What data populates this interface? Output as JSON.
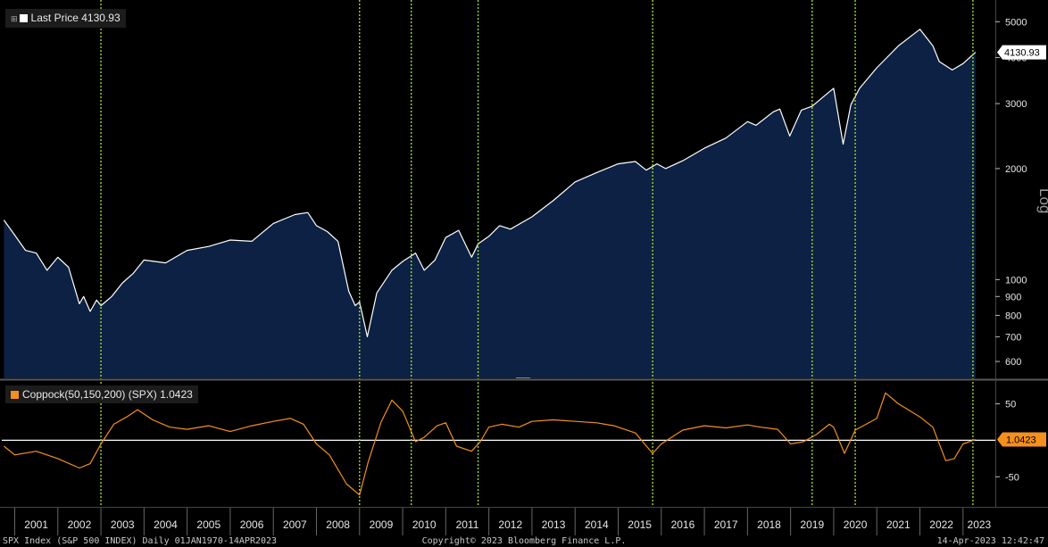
{
  "chart_data": [
    {
      "type": "area",
      "legend": {
        "label": "Last Price",
        "value": "4130.93"
      },
      "scale": "log",
      "ylim": [
        540,
        5600
      ],
      "xlim": [
        2000.7,
        2023.75
      ],
      "yticks": [
        "5000",
        "4000",
        "3000",
        "2000",
        "1000",
        "900",
        "800",
        "700",
        "600"
      ],
      "ytick_values": [
        5000,
        4000,
        3000,
        2000,
        1000,
        900,
        800,
        700,
        600
      ],
      "y_axis_note": "Log",
      "last_value_label": "4130.93",
      "x": [
        2000.75,
        2001.0,
        2001.25,
        2001.5,
        2001.75,
        2002.0,
        2002.25,
        2002.5,
        2002.6,
        2002.75,
        2002.9,
        2003.0,
        2003.25,
        2003.5,
        2003.75,
        2004.0,
        2004.5,
        2005.0,
        2005.5,
        2006.0,
        2006.5,
        2007.0,
        2007.5,
        2007.8,
        2008.0,
        2008.25,
        2008.5,
        2008.75,
        2008.9,
        2009.0,
        2009.18,
        2009.4,
        2009.75,
        2010.0,
        2010.3,
        2010.5,
        2010.75,
        2011.0,
        2011.3,
        2011.6,
        2011.75,
        2012.0,
        2012.25,
        2012.5,
        2013.0,
        2013.5,
        2014.0,
        2014.5,
        2015.0,
        2015.4,
        2015.65,
        2015.9,
        2016.1,
        2016.5,
        2017.0,
        2017.5,
        2018.0,
        2018.2,
        2018.6,
        2018.75,
        2018.98,
        2019.25,
        2019.5,
        2019.9,
        2020.0,
        2020.22,
        2020.4,
        2020.6,
        2021.0,
        2021.5,
        2022.0,
        2022.3,
        2022.45,
        2022.75,
        2023.0,
        2023.29
      ],
      "y": [
        1450,
        1320,
        1200,
        1180,
        1060,
        1150,
        1080,
        860,
        900,
        820,
        880,
        850,
        900,
        980,
        1040,
        1130,
        1110,
        1200,
        1230,
        1280,
        1270,
        1420,
        1500,
        1520,
        1400,
        1350,
        1270,
        930,
        850,
        870,
        700,
        920,
        1060,
        1120,
        1180,
        1060,
        1130,
        1300,
        1360,
        1150,
        1250,
        1310,
        1400,
        1370,
        1480,
        1640,
        1840,
        1950,
        2060,
        2090,
        1980,
        2060,
        2000,
        2100,
        2270,
        2420,
        2680,
        2620,
        2850,
        2900,
        2450,
        2880,
        2950,
        3230,
        3300,
        2330,
        2980,
        3300,
        3750,
        4300,
        4770,
        4300,
        3900,
        3700,
        3850,
        4130.93
      ],
      "event_lines_x": [
        2003.0,
        2009.0,
        2010.2,
        2011.75,
        2015.8,
        2019.5,
        2020.5,
        2023.23
      ]
    },
    {
      "type": "line",
      "legend": {
        "label": "Coppock(50,150,200) (SPX)",
        "value": "1.0423"
      },
      "ylim": [
        -90,
        80
      ],
      "yticks": [
        "50",
        "-50"
      ],
      "ytick_values": [
        50,
        -50
      ],
      "reference_line": 0,
      "last_value_label": "1.0423",
      "x": [
        2000.75,
        2001.0,
        2001.5,
        2002.0,
        2002.5,
        2002.75,
        2003.0,
        2003.3,
        2003.6,
        2003.85,
        2004.2,
        2004.6,
        2005.0,
        2005.5,
        2006.0,
        2006.5,
        2007.0,
        2007.4,
        2007.7,
        2008.0,
        2008.3,
        2008.7,
        2009.0,
        2009.2,
        2009.5,
        2009.75,
        2010.0,
        2010.3,
        2010.5,
        2010.8,
        2011.0,
        2011.25,
        2011.6,
        2011.8,
        2012.0,
        2012.3,
        2012.7,
        2013.0,
        2013.5,
        2014.0,
        2014.5,
        2014.9,
        2015.4,
        2015.8,
        2016.0,
        2016.5,
        2017.0,
        2017.5,
        2018.0,
        2018.3,
        2018.7,
        2019.0,
        2019.3,
        2019.6,
        2019.9,
        2020.0,
        2020.25,
        2020.5,
        2021.0,
        2021.2,
        2021.5,
        2022.0,
        2022.3,
        2022.6,
        2022.8,
        2023.0,
        2023.29
      ],
      "y": [
        -8,
        -20,
        -15,
        -25,
        -38,
        -32,
        -5,
        22,
        32,
        42,
        28,
        18,
        15,
        20,
        12,
        20,
        26,
        30,
        22,
        -5,
        -20,
        -60,
        -75,
        -30,
        25,
        55,
        40,
        -2,
        4,
        20,
        24,
        -8,
        -15,
        -2,
        18,
        22,
        18,
        26,
        28,
        26,
        24,
        20,
        10,
        -18,
        -5,
        14,
        20,
        17,
        21,
        18,
        15,
        -5,
        -2,
        8,
        22,
        18,
        -18,
        14,
        30,
        65,
        50,
        32,
        18,
        -28,
        -25,
        -5,
        1.0423
      ]
    }
  ],
  "x_axis": {
    "labels": [
      "2001",
      "2002",
      "2003",
      "2004",
      "2005",
      "2006",
      "2007",
      "2008",
      "2009",
      "2010",
      "2011",
      "2012",
      "2013",
      "2014",
      "2015",
      "2016",
      "2017",
      "2018",
      "2019",
      "2020",
      "2021",
      "2022",
      "2023"
    ]
  },
  "footer": {
    "left": "SPX Index (S&P 500 INDEX)  Daily 01JAN1970-14APR2023",
    "middle": "Copyright© 2023 Bloomberg Finance L.P.",
    "right": "14-Apr-2023 12:42:47"
  },
  "colors": {
    "background": "#000000",
    "area_fill": "#0c2143",
    "price_line": "#ffffff",
    "coppock_line": "#f5901e",
    "event_line": "#9ed62c",
    "zero_line": "#ffffff",
    "coppock_badge": "#f5901e",
    "price_badge": "#ffffff"
  }
}
